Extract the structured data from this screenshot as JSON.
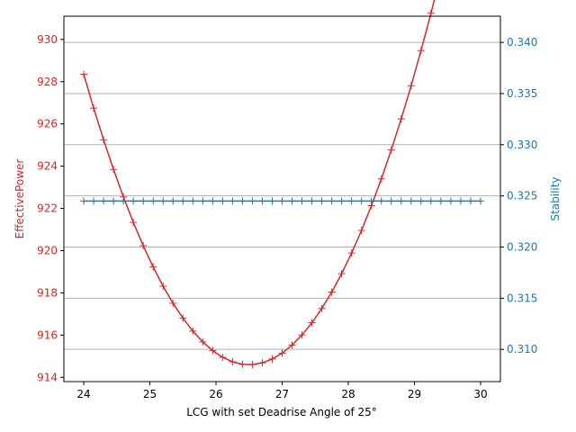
{
  "chart_data": {
    "type": "line",
    "xlabel": "LCG with set Deadrise Angle of 25°",
    "ylabel_left": "EffectivePower",
    "ylabel_right": "Stability",
    "xlim": [
      23.7,
      30.3
    ],
    "ylim_left": [
      913.8,
      931.1
    ],
    "ylim_right": [
      0.30685,
      0.34256
    ],
    "x_ticks": [
      24,
      25,
      26,
      27,
      28,
      29,
      30
    ],
    "y_ticks_left": [
      914,
      916,
      918,
      920,
      922,
      924,
      926,
      928,
      930
    ],
    "y_ticks_right": [
      0.31,
      0.315,
      0.32,
      0.325,
      0.33,
      0.335,
      0.34
    ],
    "grid": "horizontal lines at right-axis ticks",
    "colors": {
      "left": "#d62728",
      "right": "#1f77b4"
    },
    "marker": "plus",
    "series": [
      {
        "axis": "left",
        "quadratic_fit": {
          "vertex_x": 26.5,
          "vertex_y": 914.6,
          "a": 2.2
        },
        "x_range": [
          24,
          30
        ],
        "points": 41
      },
      {
        "axis": "right",
        "x_range": [
          24,
          30
        ],
        "points": 41,
        "constant_value": 0.3245
      }
    ]
  }
}
